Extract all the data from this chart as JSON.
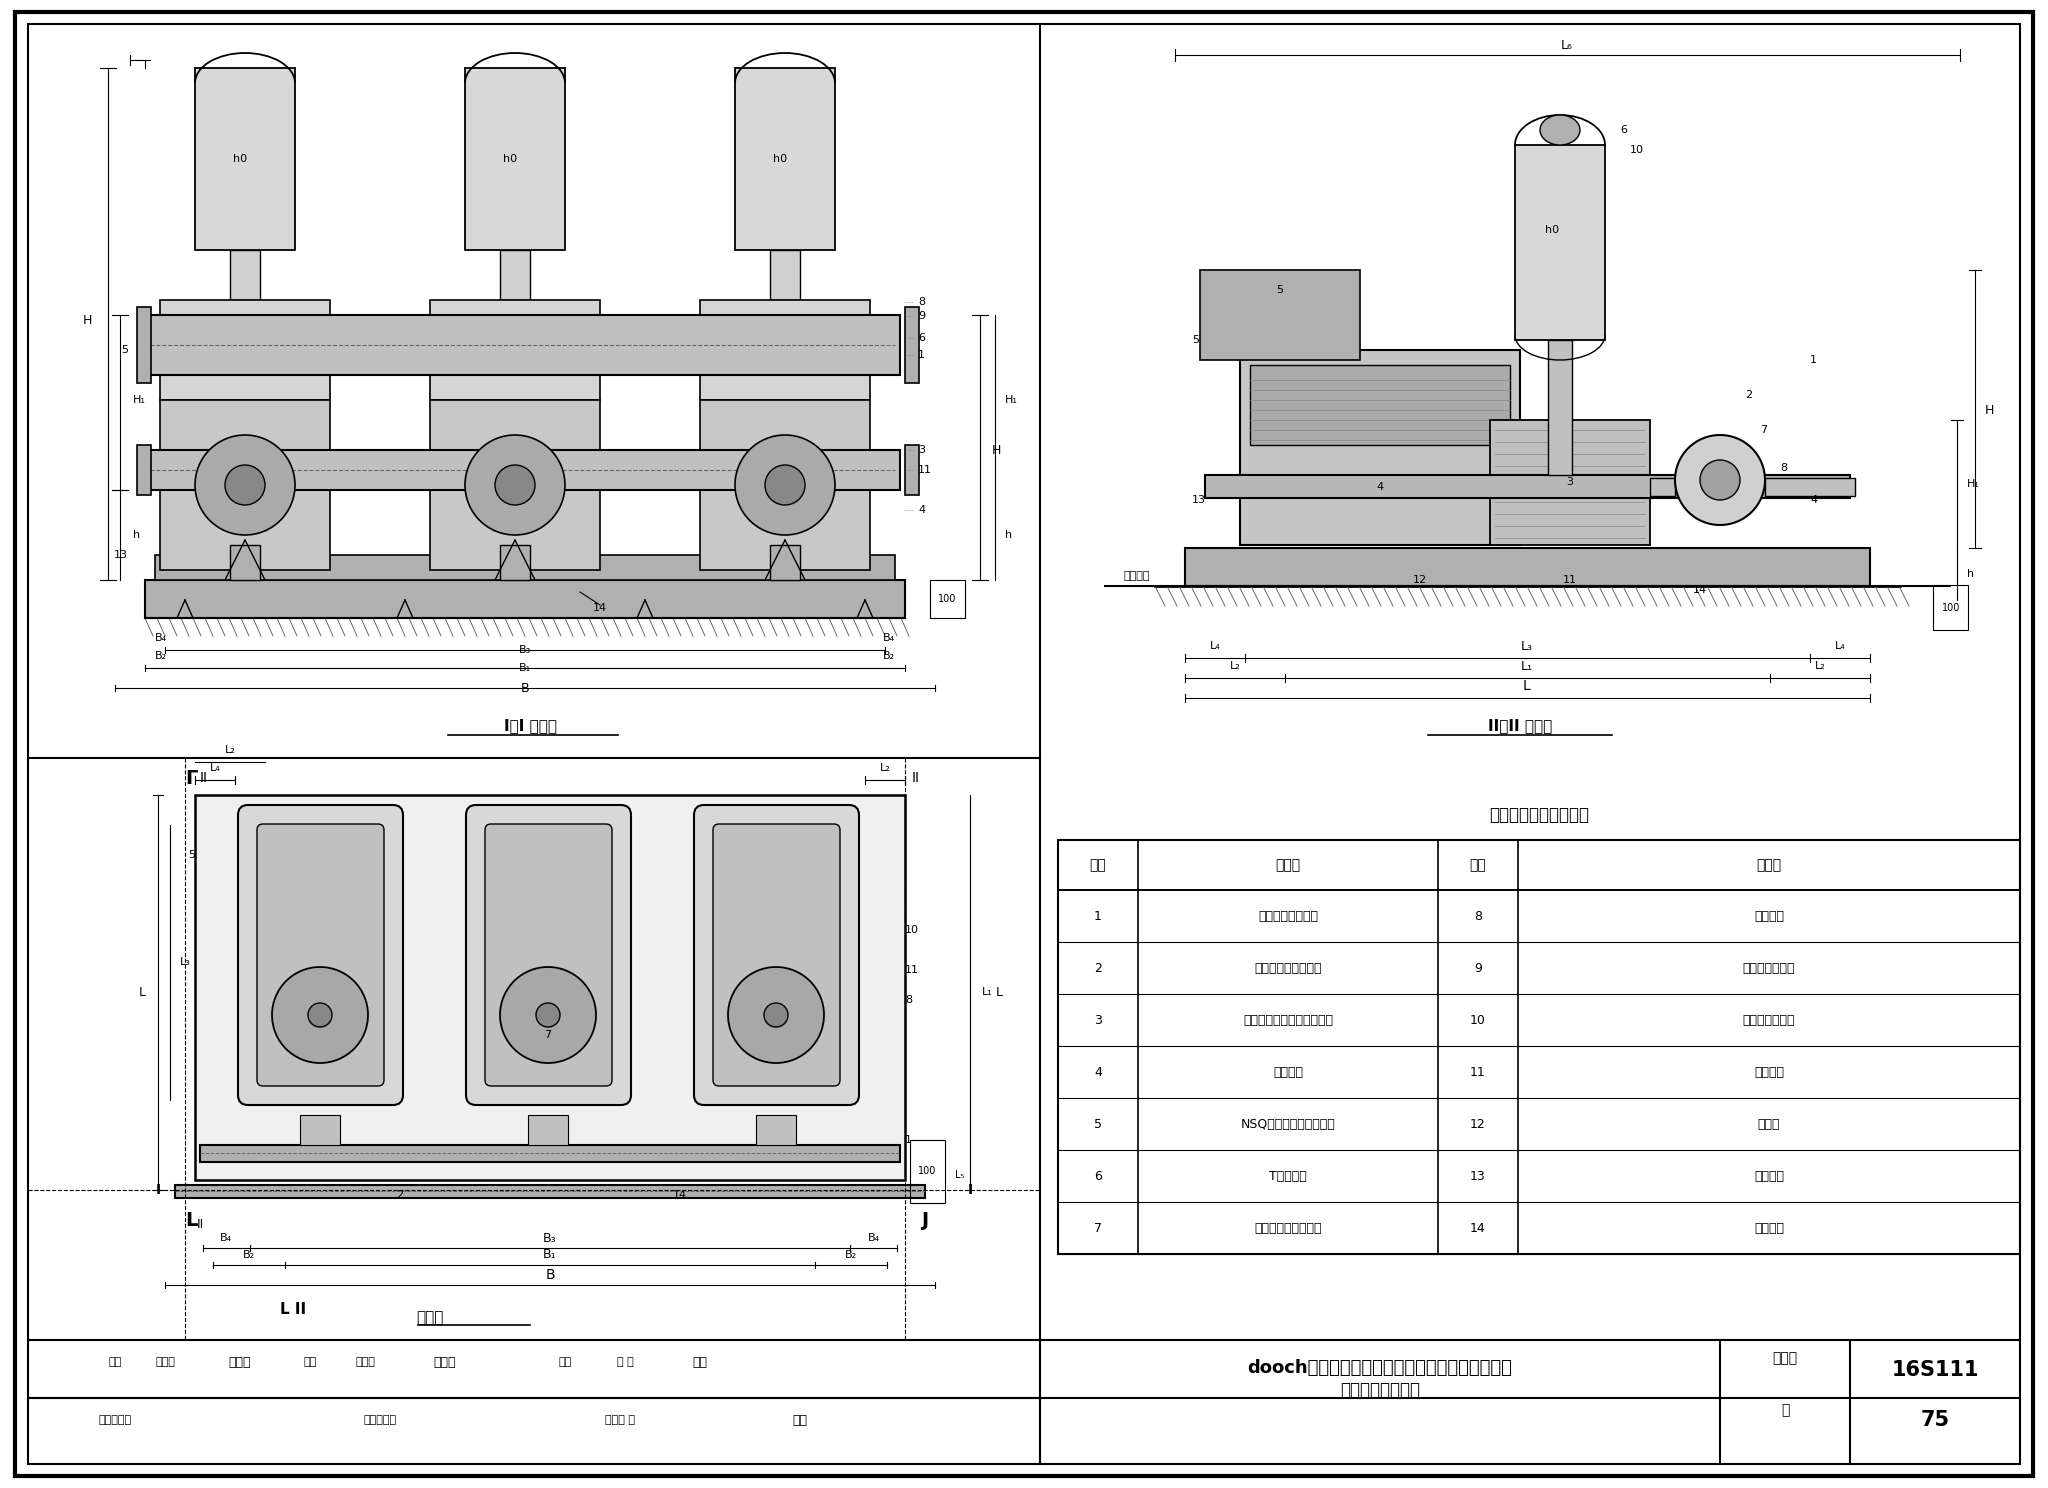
{
  "title_main": "dooch系列微型全变频恒压供水设备外形及安装图",
  "title_sub": "（两用一备泵组）",
  "atlas_no_label": "图集号",
  "atlas_no": "16S111",
  "page_label": "页",
  "page_no": "75",
  "table_title": "设备部件及安装名称表",
  "table_headers": [
    "编号",
    "名　称",
    "编号",
    "名　称"
  ],
  "table_data": [
    [
      "1",
      "吸水总管（法兰）",
      "8",
      "出水总管"
    ],
    [
      "2",
      "吸水管阀门（球阀）",
      "9",
      "出水压力传感器"
    ],
    [
      "3",
      "卧式微型不锈钢多级离心泵",
      "10",
      "胶囊式气压水罐"
    ],
    [
      "4",
      "管道支架",
      "11",
      "设备底座"
    ],
    [
      "5",
      "NSQ数字集成变频控制器",
      "12",
      "隔振垫"
    ],
    [
      "6",
      "T型止回阀",
      "13",
      "膨胀螺栓"
    ],
    [
      "7",
      "出水管阀门（球阀）",
      "14",
      "设备基础"
    ]
  ],
  "view1_label": "I－I 剖视图",
  "view2_label": "II－II 剖视图",
  "plan_label": "平面图",
  "pump_color": "#c8c8c8",
  "tank_color": "#d8d8d8",
  "body_color": "#e0e0e0",
  "base_color": "#b0b0b0",
  "line_color": "#000000",
  "bg_color": "#ffffff"
}
